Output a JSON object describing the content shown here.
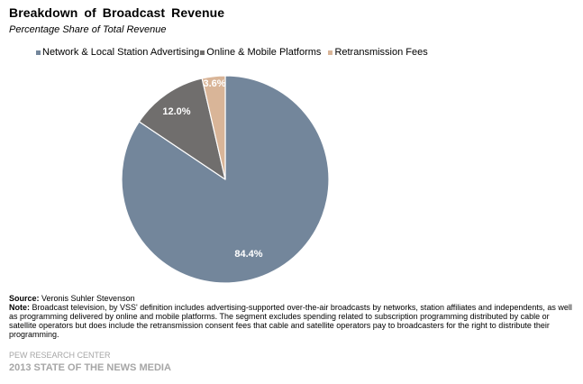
{
  "chart_data": {
    "type": "pie",
    "title": "Breakdown of Broadcast Revenue",
    "subtitle": "Percentage Share of Total Revenue",
    "legend_position": "top",
    "slices": [
      {
        "name": "Network & Local Station Advertising",
        "value": 84.4,
        "label": "84.4%",
        "color": "#73869b"
      },
      {
        "name": "Online & Mobile Platforms",
        "value": 12.0,
        "label": "12.0%",
        "color": "#706e6d"
      },
      {
        "name": "Retransmission Fees",
        "value": 3.6,
        "label": "3.6%",
        "color": "#d9b598"
      }
    ]
  },
  "source": {
    "label": "Source:",
    "text": " Veronis Suhler Stevenson"
  },
  "note": {
    "label": "Note:",
    "text": " Broadcast television, by VSS' definition includes advertising-supported over-the-air broadcasts by networks, station affiliates and independents, as well as programming delivered by online and mobile platforms. The segment excludes spending related to subscription programming distributed by cable or satellite operators but does include the retransmission consent fees that cable and satellite operators pay to broadcasters for the right to distribute their programming."
  },
  "organization": "PEW RESEARCH CENTER",
  "report": "2013 STATE OF THE NEWS MEDIA"
}
